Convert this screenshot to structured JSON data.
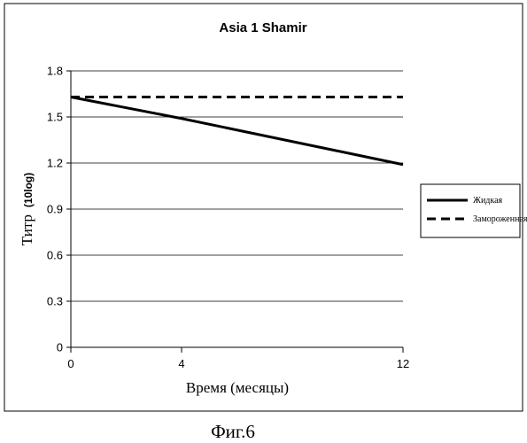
{
  "chart_data": {
    "type": "line",
    "title": "Asia 1 Shamir",
    "xlabel": "Время (месяцы)",
    "ylabel": "Титр",
    "ylabel_sub": "(10log)",
    "x": [
      0,
      4,
      12
    ],
    "xlim": [
      0,
      12
    ],
    "ylim": [
      0,
      1.8
    ],
    "yticks": [
      0,
      0.3,
      0.6,
      0.9,
      1.2,
      1.5,
      1.8
    ],
    "ytick_labels": [
      "0",
      "0.3",
      "0.6",
      "0.9",
      "1.2",
      "1.5",
      "1.8"
    ],
    "xticks": [
      0,
      4,
      12
    ],
    "xtick_labels": [
      "0",
      "4",
      "12"
    ],
    "grid": "horizontal",
    "legend": "right",
    "series": [
      {
        "name": "Жидкая",
        "values": [
          1.63,
          1.49,
          1.19
        ],
        "style": "solid",
        "color": "#000000"
      },
      {
        "name": "Замороженная",
        "values": [
          1.63,
          1.63,
          1.63
        ],
        "style": "dashed",
        "color": "#000000"
      }
    ]
  },
  "caption": "Фиг.6"
}
